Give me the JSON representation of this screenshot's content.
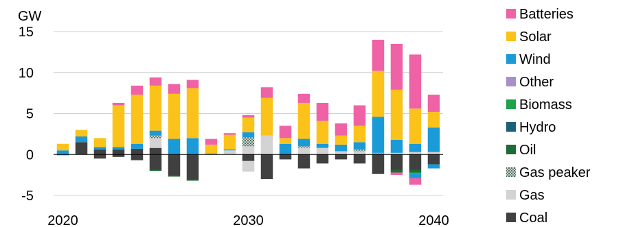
{
  "chart_data": {
    "type": "bar",
    "stacked": true,
    "ylabel": "GW",
    "ylim": [
      -5,
      15
    ],
    "yticks": [
      -5,
      0,
      5,
      10,
      15
    ],
    "grid": true,
    "legend_position": "right",
    "x": [
      2020,
      2021,
      2022,
      2023,
      2024,
      2025,
      2026,
      2027,
      2028,
      2029,
      2030,
      2031,
      2032,
      2033,
      2034,
      2035,
      2036,
      2037,
      2038,
      2039,
      2040
    ],
    "xticks": [
      {
        "label": "2020",
        "value": 2020
      },
      {
        "label": "2030",
        "value": 2030
      },
      {
        "label": "2040",
        "value": 2040
      }
    ],
    "series": [
      {
        "name": "Coal",
        "color": "#404040",
        "values": [
          0,
          1.5,
          0.6,
          0.6,
          0.7,
          0.8,
          0,
          0,
          0,
          0,
          0,
          0,
          0,
          0,
          0,
          0,
          0,
          0,
          0,
          0,
          0
        ],
        "neg_values": [
          0,
          0,
          -0.5,
          -0.3,
          -0.7,
          -1.9,
          -2.6,
          -3.1,
          0,
          0,
          -0.8,
          -3.0,
          -0.6,
          -1.7,
          -1.1,
          -0.6,
          -1.1,
          -2.3,
          -1.9,
          -1.9,
          -1.2
        ]
      },
      {
        "name": "Gas",
        "color": "#d3d3d3",
        "values": [
          0,
          0,
          0,
          0,
          0,
          1.2,
          0,
          0,
          0,
          0.5,
          1.0,
          2.3,
          0,
          0.8,
          0.8,
          0.4,
          0.4,
          0,
          0.2,
          0.3,
          0.3
        ],
        "neg_values": [
          0,
          0,
          0,
          0,
          0,
          0,
          0,
          0,
          0,
          0,
          -1.3,
          0,
          0,
          0,
          0,
          0,
          0,
          0,
          0,
          0,
          0
        ]
      },
      {
        "name": "Gas peaker",
        "color": "#8fa59a",
        "values": [
          0,
          0,
          0,
          0,
          0,
          0.3,
          0,
          0,
          0,
          0,
          1.1,
          0,
          0,
          0.2,
          0,
          0,
          0.2,
          0.2,
          0,
          0,
          0
        ],
        "neg_values": [
          0,
          0,
          0,
          0,
          0,
          0,
          0,
          0,
          0,
          0,
          0,
          0,
          0,
          0,
          0,
          0,
          0,
          0,
          0,
          0,
          0
        ]
      },
      {
        "name": "Oil",
        "color": "#1d6b35",
        "values": [
          0,
          0,
          0,
          0,
          0,
          0,
          0,
          0,
          0,
          0,
          0,
          0,
          0,
          0,
          0,
          0,
          0,
          0,
          0,
          0,
          0
        ],
        "neg_values": [
          0,
          0,
          0,
          0,
          0,
          -0.1,
          -0.1,
          -0.1,
          0,
          0,
          0,
          0,
          0,
          0,
          0,
          0,
          0,
          -0.1,
          -0.3,
          -0.3,
          0
        ]
      },
      {
        "name": "Hydro",
        "color": "#1b5f7a",
        "values": [
          0,
          0,
          0,
          0,
          0,
          0,
          0,
          0,
          0,
          0,
          0,
          0,
          0,
          0,
          0,
          0,
          0,
          0,
          0,
          0,
          0
        ],
        "neg_values": [
          0,
          0,
          0,
          0,
          0,
          0,
          0,
          0,
          0,
          0,
          0,
          0,
          0,
          0,
          0,
          0,
          0,
          0,
          0,
          0,
          0
        ]
      },
      {
        "name": "Biomass",
        "color": "#1fa34a",
        "values": [
          0,
          0,
          0,
          0,
          0,
          0,
          0,
          0,
          0,
          0,
          0,
          0,
          0,
          0,
          0,
          0,
          0,
          0,
          0,
          0,
          0
        ],
        "neg_values": [
          0,
          0,
          0,
          0,
          0,
          0,
          0,
          0,
          0,
          0,
          0,
          0,
          0,
          0,
          0,
          0,
          0,
          0,
          0,
          -0.1,
          0
        ]
      },
      {
        "name": "Other",
        "color": "#a98fca",
        "values": [
          0,
          0,
          0,
          0,
          0,
          0,
          0,
          0,
          0,
          0,
          0,
          0,
          0,
          0,
          0,
          0,
          0,
          0,
          0,
          0,
          0
        ],
        "neg_values": [
          0,
          0,
          0,
          0,
          0,
          0,
          0,
          0,
          0,
          0,
          0,
          0,
          0,
          0,
          0,
          0,
          0,
          0,
          0,
          0,
          0
        ]
      },
      {
        "name": "Wind",
        "color": "#1a9ad6",
        "values": [
          0.5,
          0.7,
          0.3,
          0.3,
          0.6,
          0.6,
          1.9,
          2.0,
          0.1,
          0.1,
          0.6,
          0,
          1.3,
          0.9,
          0.5,
          0.8,
          0.9,
          4.4,
          1.6,
          1.0,
          3.0
        ],
        "neg_values": [
          -0.1,
          0,
          0,
          0,
          0,
          0,
          0,
          0,
          0,
          0,
          0,
          0,
          0,
          0,
          0,
          0,
          0,
          0,
          0,
          -0.6,
          -0.5
        ]
      },
      {
        "name": "Solar",
        "color": "#fbc31a",
        "values": [
          0.8,
          0.8,
          1.1,
          5.1,
          6.0,
          5.5,
          5.5,
          6.1,
          1.1,
          1.8,
          1.8,
          4.6,
          0.7,
          4.4,
          2.8,
          1.1,
          2.0,
          5.6,
          6.1,
          4.3,
          1.9
        ],
        "neg_values": [
          0,
          0,
          0,
          0,
          0,
          0,
          0,
          0,
          0,
          0,
          0,
          0,
          0,
          0,
          0,
          0,
          0,
          0,
          0,
          0,
          0
        ]
      },
      {
        "name": "Batteries",
        "color": "#f062a6",
        "values": [
          0,
          0,
          0,
          0.3,
          1.1,
          1.0,
          1.2,
          1.0,
          0.7,
          0.2,
          0.3,
          1.3,
          1.5,
          1.1,
          2.2,
          1.5,
          2.5,
          3.8,
          5.6,
          6.6,
          2.1
        ],
        "neg_values": [
          0,
          0,
          0,
          0,
          0,
          0,
          0,
          0,
          0,
          0,
          0,
          0,
          0,
          0,
          0,
          0,
          0,
          0,
          -0.3,
          -0.8,
          0
        ]
      }
    ],
    "legend_order": [
      "Batteries",
      "Solar",
      "Wind",
      "Other",
      "Biomass",
      "Hydro",
      "Oil",
      "Gas peaker",
      "Gas",
      "Coal"
    ]
  }
}
